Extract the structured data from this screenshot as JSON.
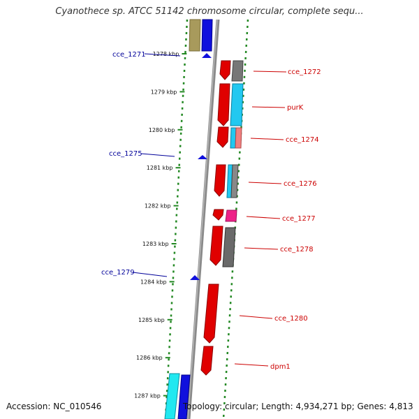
{
  "title": "Cyanothece sp. ATCC 51142 chromosome circular, complete sequ...",
  "footer": {
    "accession": "Accession: NC_010546",
    "topology": "Topology: circular; Length: 4,934,271 bp; Genes: 4,813"
  },
  "colors": {
    "backbone": "#888888",
    "ruler_ticks": "#228822",
    "forward_gene": "#e00000",
    "reverse_gene": "#0000dd",
    "label_forward": "#cc0000",
    "label_reverse": "#000099"
  },
  "ruler": {
    "unit": "kbp",
    "ticks": [
      "1278 kbp",
      "1279 kbp",
      "1280 kbp",
      "1281 kbp",
      "1282 kbp",
      "1283 kbp",
      "1284 kbp",
      "1285 kbp",
      "1286 kbp",
      "1287 kbp"
    ]
  },
  "genes": [
    {
      "id": "cce_1271",
      "label": "cce_1271",
      "strand": "reverse"
    },
    {
      "id": "cce_1272",
      "label": "cce_1272",
      "strand": "forward"
    },
    {
      "id": "purK",
      "label": "purK",
      "strand": "forward"
    },
    {
      "id": "cce_1274",
      "label": "cce_1274",
      "strand": "forward"
    },
    {
      "id": "cce_1275",
      "label": "cce_1275",
      "strand": "reverse"
    },
    {
      "id": "cce_1276",
      "label": "cce_1276",
      "strand": "forward"
    },
    {
      "id": "cce_1277",
      "label": "cce_1277",
      "strand": "forward"
    },
    {
      "id": "cce_1278",
      "label": "cce_1278",
      "strand": "forward"
    },
    {
      "id": "cce_1279",
      "label": "cce_1279",
      "strand": "reverse"
    },
    {
      "id": "cce_1280",
      "label": "cce_1280",
      "strand": "forward"
    },
    {
      "id": "dpm1",
      "label": "dpm1",
      "strand": "forward"
    }
  ]
}
